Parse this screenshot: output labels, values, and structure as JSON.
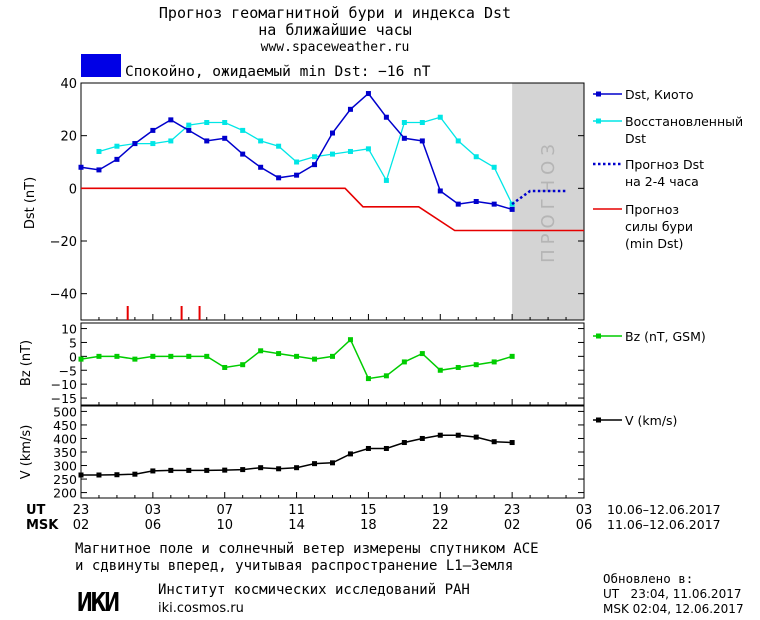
{
  "header": {
    "title_line1": "Прогноз геомагнитной бури и индекса Dst",
    "title_line2": "на ближайшие часы",
    "url": "www.spaceweather.ru",
    "status_color": "#0000e6",
    "status_text": "Спокойно, ожидаемый min Dst: −16 nT"
  },
  "colors": {
    "dst_kyoto": "#0000cc",
    "dst_restored": "#00e6e6",
    "forecast_dst": "#0000cc",
    "forecast_storm": "#e60000",
    "bz": "#00cc00",
    "speed": "#000000",
    "forecast_band": "#d4d4d4",
    "forecast_text": "#b5b5b5"
  },
  "forecast_band_label": "ПРОГНОЗ",
  "chart_data": [
    {
      "type": "line",
      "ylabel": "Dst (nT)",
      "ylim": [
        -50,
        40
      ],
      "yticks": [
        -40,
        -20,
        0,
        20,
        40
      ],
      "xlim": [
        0,
        28
      ],
      "forecast_band_start": 24,
      "series": [
        {
          "name": "Dst, Киото",
          "x": [
            0,
            1,
            2,
            3,
            4,
            5,
            6,
            7,
            8,
            9,
            10,
            11,
            12,
            13,
            14,
            15,
            16,
            17,
            18,
            19,
            20,
            21,
            22,
            23,
            24
          ],
          "y": [
            8,
            7,
            11,
            17,
            22,
            26,
            22,
            18,
            19,
            13,
            8,
            4,
            5,
            9,
            21,
            30,
            36,
            27,
            19,
            18,
            -1,
            -6,
            -5,
            -6,
            -8
          ]
        },
        {
          "name": "Восстановленный Dst",
          "x": [
            1,
            2,
            3,
            4,
            5,
            6,
            7,
            8,
            9,
            10,
            11,
            12,
            13,
            14,
            15,
            16,
            17,
            18,
            19,
            20,
            21,
            22,
            23,
            24
          ],
          "y": [
            14,
            16,
            17,
            17,
            18,
            24,
            25,
            25,
            22,
            18,
            16,
            10,
            12,
            13,
            14,
            15,
            3,
            25,
            25,
            27,
            18,
            12,
            8,
            -6
          ]
        },
        {
          "name": "Прогноз Dst на 2-4 часа",
          "x": [
            24,
            25,
            26,
            27
          ],
          "y": [
            -6,
            -1,
            -1,
            -1
          ]
        },
        {
          "name": "Прогноз силы бури (min Dst)",
          "x": [
            0,
            14.7,
            15.7,
            18.8,
            20.8,
            28
          ],
          "y": [
            0,
            0,
            -7,
            -7,
            -16,
            -16
          ]
        }
      ],
      "storm_markers_x": [
        2.6,
        5.6,
        6.6
      ]
    },
    {
      "type": "line",
      "ylabel": "Bz (nT)",
      "ylim": [
        -17.5,
        12
      ],
      "yticks": [
        -15,
        -10,
        -5,
        0,
        5,
        10
      ],
      "xlim": [
        0,
        28
      ],
      "series": [
        {
          "name": "Bz (nT, GSM)",
          "x": [
            0,
            1,
            2,
            3,
            4,
            5,
            6,
            7,
            8,
            9,
            10,
            11,
            12,
            13,
            14,
            15,
            16,
            17,
            18,
            19,
            20,
            21,
            22,
            23,
            24
          ],
          "y": [
            -1,
            0,
            0,
            -1,
            0,
            0,
            0,
            0,
            -4,
            -3,
            2,
            1,
            0,
            -1,
            0,
            6,
            -8,
            -7,
            -2,
            1,
            -5,
            -4,
            -3,
            -2,
            0
          ]
        }
      ]
    },
    {
      "type": "line",
      "ylabel": "V (km/s)",
      "ylim": [
        180,
        520
      ],
      "yticks": [
        200,
        250,
        300,
        350,
        400,
        450,
        500
      ],
      "xlim": [
        0,
        28
      ],
      "series": [
        {
          "name": "V (km/s)",
          "x": [
            0,
            1,
            2,
            3,
            4,
            5,
            6,
            7,
            8,
            9,
            10,
            11,
            12,
            13,
            14,
            15,
            16,
            17,
            18,
            19,
            20,
            21,
            22,
            23,
            24
          ],
          "y": [
            265,
            265,
            266,
            268,
            280,
            282,
            282,
            282,
            283,
            285,
            292,
            288,
            292,
            307,
            310,
            343,
            363,
            363,
            385,
            400,
            412,
            412,
            405,
            388,
            385
          ]
        }
      ]
    }
  ],
  "legend": {
    "dst_kyoto": "Dst, Киото",
    "restored_line1": "Восстановленный",
    "restored_line2": "Dst",
    "fc_dst_line1": "Прогноз Dst",
    "fc_dst_line2": "на 2-4 часа",
    "fc_storm_line1": "Прогноз",
    "fc_storm_line2": "силы бури",
    "fc_storm_line3": "(min Dst)",
    "bz": "Bz (nT, GSM)",
    "v": "V (km/s)"
  },
  "time_axis": {
    "ut_label": "UT",
    "msk_label": "MSK",
    "ut_ticks": [
      "23",
      "03",
      "07",
      "11",
      "15",
      "19",
      "23",
      "03"
    ],
    "msk_ticks": [
      "02",
      "06",
      "10",
      "14",
      "18",
      "22",
      "02",
      "06"
    ],
    "ut_range": "10.06–12.06.2017",
    "msk_range": "11.06–12.06.2017"
  },
  "footer": {
    "note_line1": "Магнитное поле и солнечный ветер измерены спутником ACE",
    "note_line2": "и сдвинуты вперед, учитывая распространение L1–Земля",
    "logo_text": "ИКИ",
    "institute": "Институт космических исследований РАН",
    "institute_url": "iki.cosmos.ru",
    "updated_label": "Обновлено в:",
    "updated_ut": "UT   23:04, 11.06.2017",
    "updated_msk": "MSK 02:04, 12.06.2017"
  }
}
